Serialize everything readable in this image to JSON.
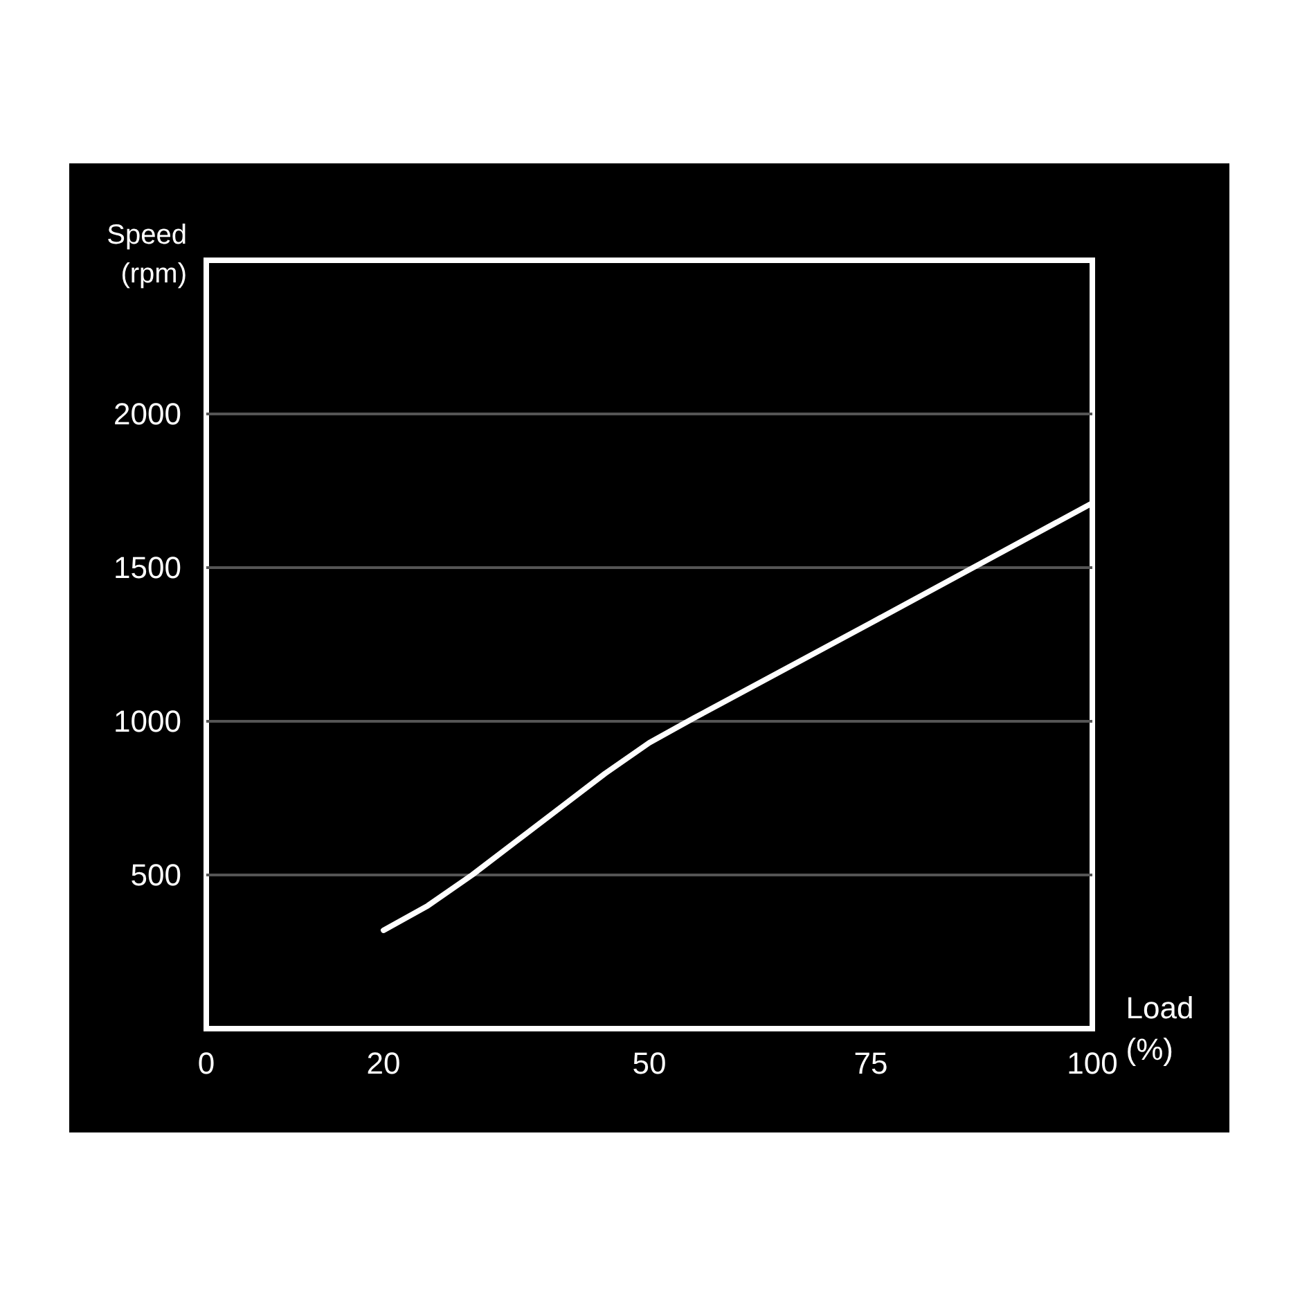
{
  "chart_data": {
    "type": "line",
    "xlabel": "Load\n(%)",
    "ylabel": "Speed\n(rpm)",
    "x": [
      20,
      25,
      30,
      35,
      40,
      45,
      50,
      55,
      75,
      100
    ],
    "series": [
      {
        "color": "#ffffff",
        "values": [
          320,
          400,
          500,
          610,
          720,
          830,
          930,
          1010,
          1320,
          1710
        ]
      }
    ],
    "xlim": [
      0,
      100
    ],
    "xticks": [
      0,
      20,
      50,
      75,
      100
    ],
    "ylim": [
      0,
      2500
    ],
    "yticks": [
      500,
      1000,
      1500,
      2000
    ],
    "grid": "y",
    "marker": "none",
    "line_style": "solid"
  }
}
